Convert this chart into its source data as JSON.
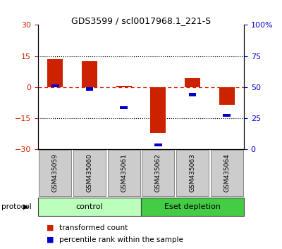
{
  "title": "GDS3599 / scl0017968.1_221-S",
  "samples": [
    "GSM435059",
    "GSM435060",
    "GSM435061",
    "GSM435062",
    "GSM435063",
    "GSM435064"
  ],
  "red_values": [
    13.5,
    12.5,
    0.5,
    -22.0,
    4.5,
    -8.5
  ],
  "blue_values_pct": [
    51.0,
    48.5,
    33.5,
    3.5,
    44.0,
    27.5
  ],
  "ylim_left": [
    -30,
    30
  ],
  "ylim_right": [
    0,
    100
  ],
  "yticks_left": [
    -30,
    -15,
    0,
    15,
    30
  ],
  "yticks_right": [
    0,
    25,
    50,
    75,
    100
  ],
  "ytick_labels_right": [
    "0",
    "25",
    "50",
    "75",
    "100%"
  ],
  "red_color": "#cc2200",
  "blue_color": "#0000cc",
  "dashed_color": "#cc2200",
  "grid_color": "#000000",
  "bar_width": 0.45,
  "groups": [
    {
      "label": "control",
      "indices": [
        0,
        1,
        2
      ],
      "color": "#bbffbb"
    },
    {
      "label": "Eset depletion",
      "indices": [
        3,
        4,
        5
      ],
      "color": "#44cc44"
    }
  ],
  "protocol_label": "protocol",
  "legend_items": [
    {
      "color": "#cc2200",
      "label": "transformed count"
    },
    {
      "color": "#0000cc",
      "label": "percentile rank within the sample"
    }
  ],
  "background_color": "#ffffff"
}
